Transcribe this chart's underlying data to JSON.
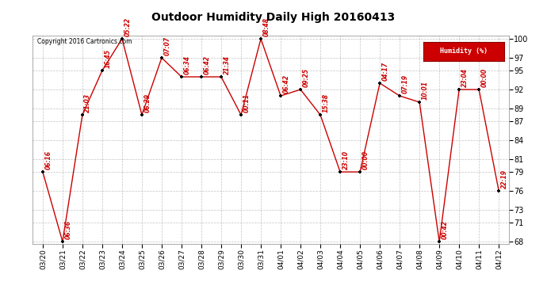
{
  "title": "Outdoor Humidity Daily High 20160413",
  "copyright": "Copyright 2016 Cartronics.com",
  "legend_label": "Humidity (%)",
  "dates": [
    "03/20",
    "03/21",
    "03/22",
    "03/23",
    "03/24",
    "03/25",
    "03/26",
    "03/27",
    "03/28",
    "03/29",
    "03/30",
    "03/31",
    "04/01",
    "04/02",
    "04/03",
    "04/04",
    "04/05",
    "04/06",
    "04/07",
    "04/08",
    "04/09",
    "04/10",
    "04/11",
    "04/12"
  ],
  "values": [
    79,
    68,
    88,
    95,
    100,
    88,
    97,
    94,
    94,
    94,
    88,
    100,
    91,
    92,
    88,
    79,
    79,
    93,
    91,
    90,
    68,
    92,
    92,
    76
  ],
  "labels": [
    "06:16",
    "06:36",
    "21:03",
    "16:45",
    "05:22",
    "06:29",
    "07:07",
    "06:34",
    "06:42",
    "21:34",
    "00:11",
    "08:48",
    "06:42",
    "09:25",
    "15:38",
    "23:10",
    "00:00",
    "04:17",
    "07:19",
    "10:01",
    "00:42",
    "23:04",
    "00:00",
    "22:19"
  ],
  "line_color": "#cc0000",
  "marker_color": "#000000",
  "background_color": "#ffffff",
  "grid_color": "#aaaaaa",
  "ylim_min": 68,
  "ylim_max": 100,
  "yticks": [
    68,
    71,
    73,
    76,
    79,
    81,
    84,
    87,
    89,
    92,
    95,
    97,
    100
  ]
}
